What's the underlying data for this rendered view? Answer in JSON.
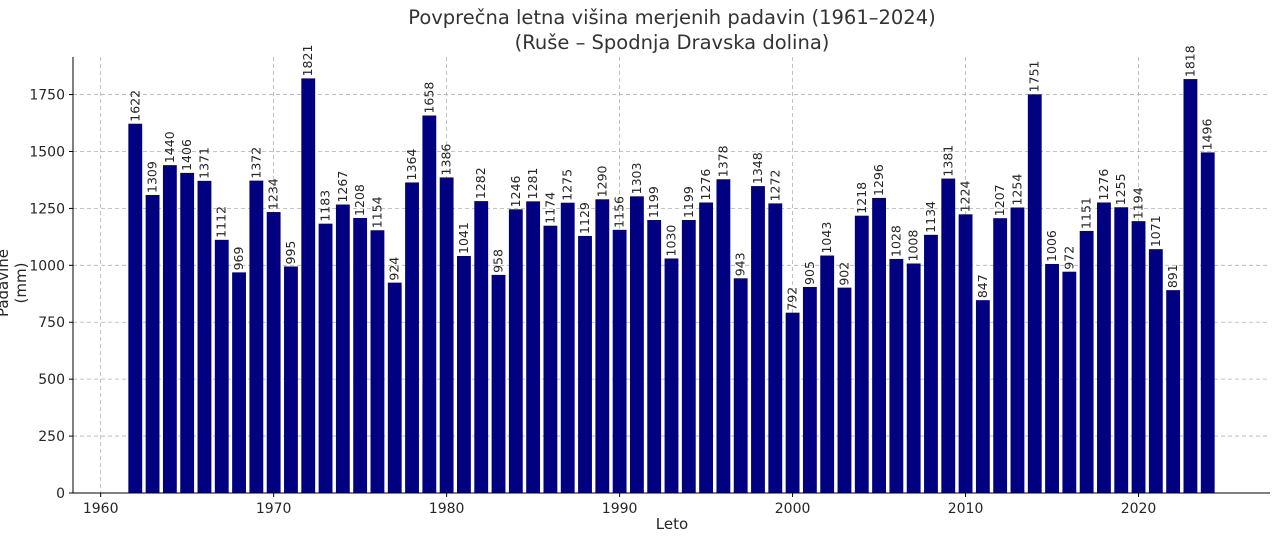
{
  "chart_data": {
    "type": "bar",
    "title": "Povprečna letna višina merjenih padavin (1961–2024)",
    "subtitle": "(Ruše – Spodnja Dravska dolina)",
    "xlabel": "Leto",
    "ylabel": "Padavine (mm)",
    "bar_color": "#000080",
    "grid": true,
    "xlim": [
      1958.4,
      2027.6
    ],
    "ylim": [
      0,
      1915
    ],
    "xticks": [
      1960,
      1970,
      1980,
      1990,
      2000,
      2010,
      2020
    ],
    "yticks": [
      0,
      250,
      500,
      750,
      1000,
      1250,
      1500,
      1750
    ],
    "categories": [
      1962,
      1963,
      1964,
      1965,
      1966,
      1967,
      1968,
      1969,
      1970,
      1971,
      1972,
      1973,
      1974,
      1975,
      1976,
      1977,
      1978,
      1979,
      1980,
      1981,
      1982,
      1983,
      1984,
      1985,
      1986,
      1987,
      1988,
      1989,
      1990,
      1991,
      1992,
      1993,
      1994,
      1995,
      1996,
      1997,
      1998,
      1999,
      2000,
      2001,
      2002,
      2003,
      2004,
      2005,
      2006,
      2007,
      2008,
      2009,
      2010,
      2011,
      2012,
      2013,
      2014,
      2015,
      2016,
      2017,
      2018,
      2019,
      2020,
      2021,
      2022,
      2023,
      2024
    ],
    "values": [
      1622,
      1309,
      1440,
      1406,
      1371,
      1112,
      969,
      1372,
      1234,
      995,
      1821,
      1183,
      1267,
      1208,
      1154,
      924,
      1364,
      1658,
      1386,
      1041,
      1282,
      958,
      1246,
      1281,
      1174,
      1275,
      1129,
      1290,
      1156,
      1303,
      1199,
      1030,
      1199,
      1276,
      1378,
      943,
      1348,
      1272,
      792,
      905,
      1043,
      902,
      1218,
      1296,
      1028,
      1008,
      1134,
      1381,
      1224,
      847,
      1207,
      1254,
      1751,
      1006,
      972,
      1151,
      1276,
      1255,
      1194,
      1071,
      891,
      1818,
      1496
    ]
  }
}
